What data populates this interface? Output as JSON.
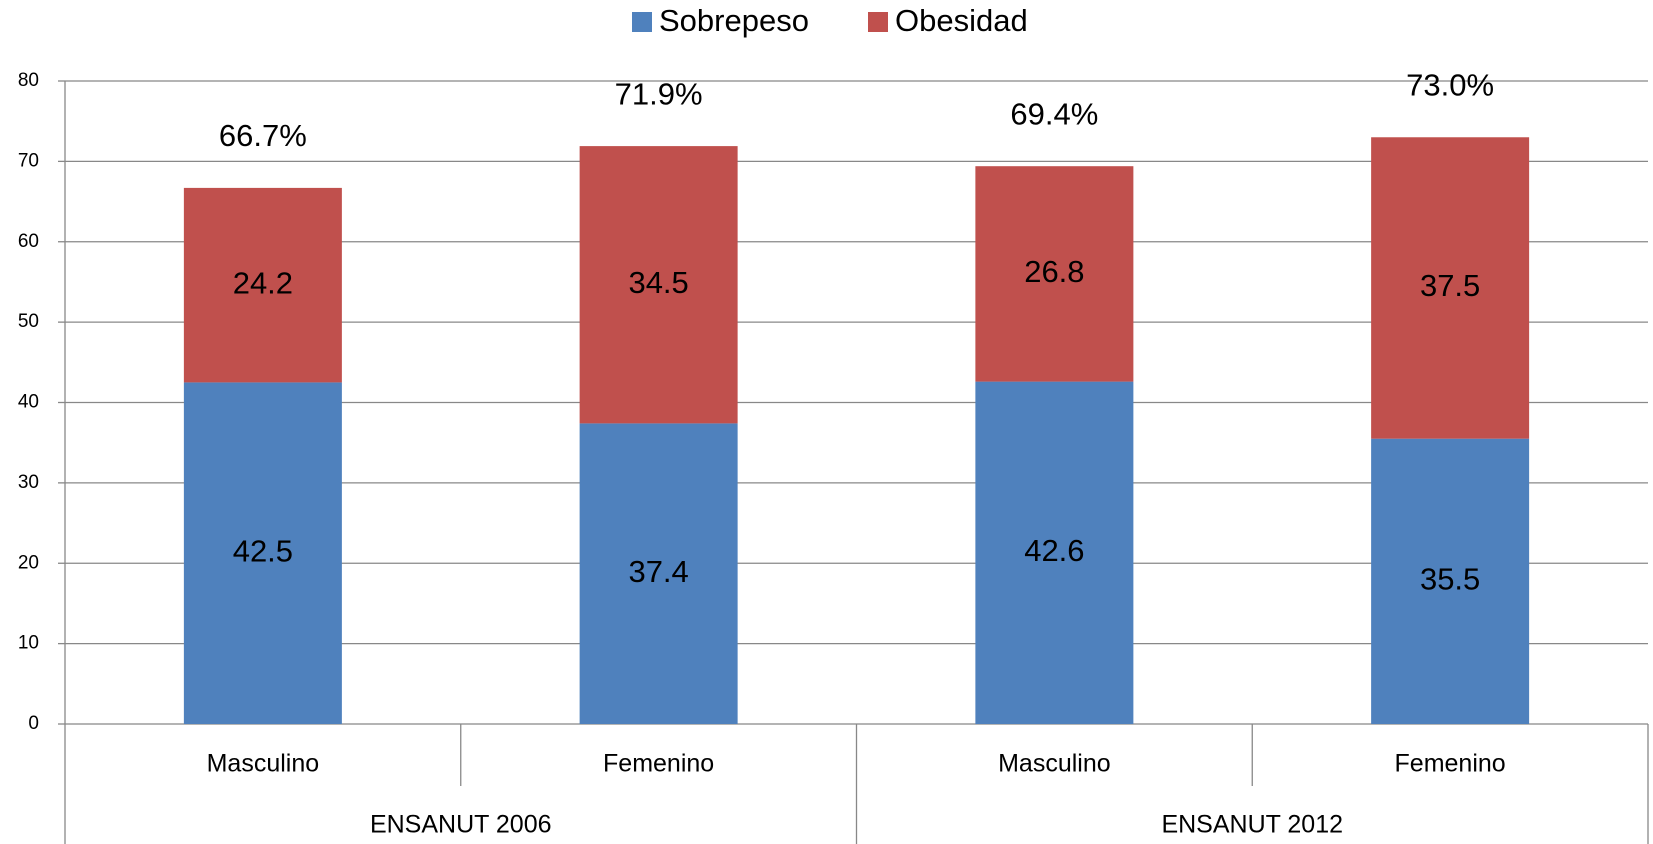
{
  "chart_data": {
    "type": "stacked_bar",
    "categories": [
      "Masculino",
      "Femenino",
      "Masculino",
      "Femenino"
    ],
    "groups": [
      "ENSANUT 2006",
      "ENSANUT 2012"
    ],
    "series": [
      {
        "name": "Sobrepeso",
        "color": "#4f81bd",
        "values": [
          42.5,
          37.4,
          42.6,
          35.5
        ]
      },
      {
        "name": "Obesidad",
        "color": "#c0504d",
        "values": [
          24.2,
          34.5,
          26.8,
          37.5
        ]
      }
    ],
    "totals": [
      66.7,
      71.9,
      69.4,
      73.0
    ],
    "total_labels": [
      "66.7%",
      "71.9%",
      "69.4%",
      "73.0%"
    ],
    "ylim": [
      0,
      80
    ],
    "yticks": [
      0,
      10,
      20,
      30,
      40,
      50,
      60,
      70,
      80
    ],
    "grid": true,
    "legend": "top"
  }
}
